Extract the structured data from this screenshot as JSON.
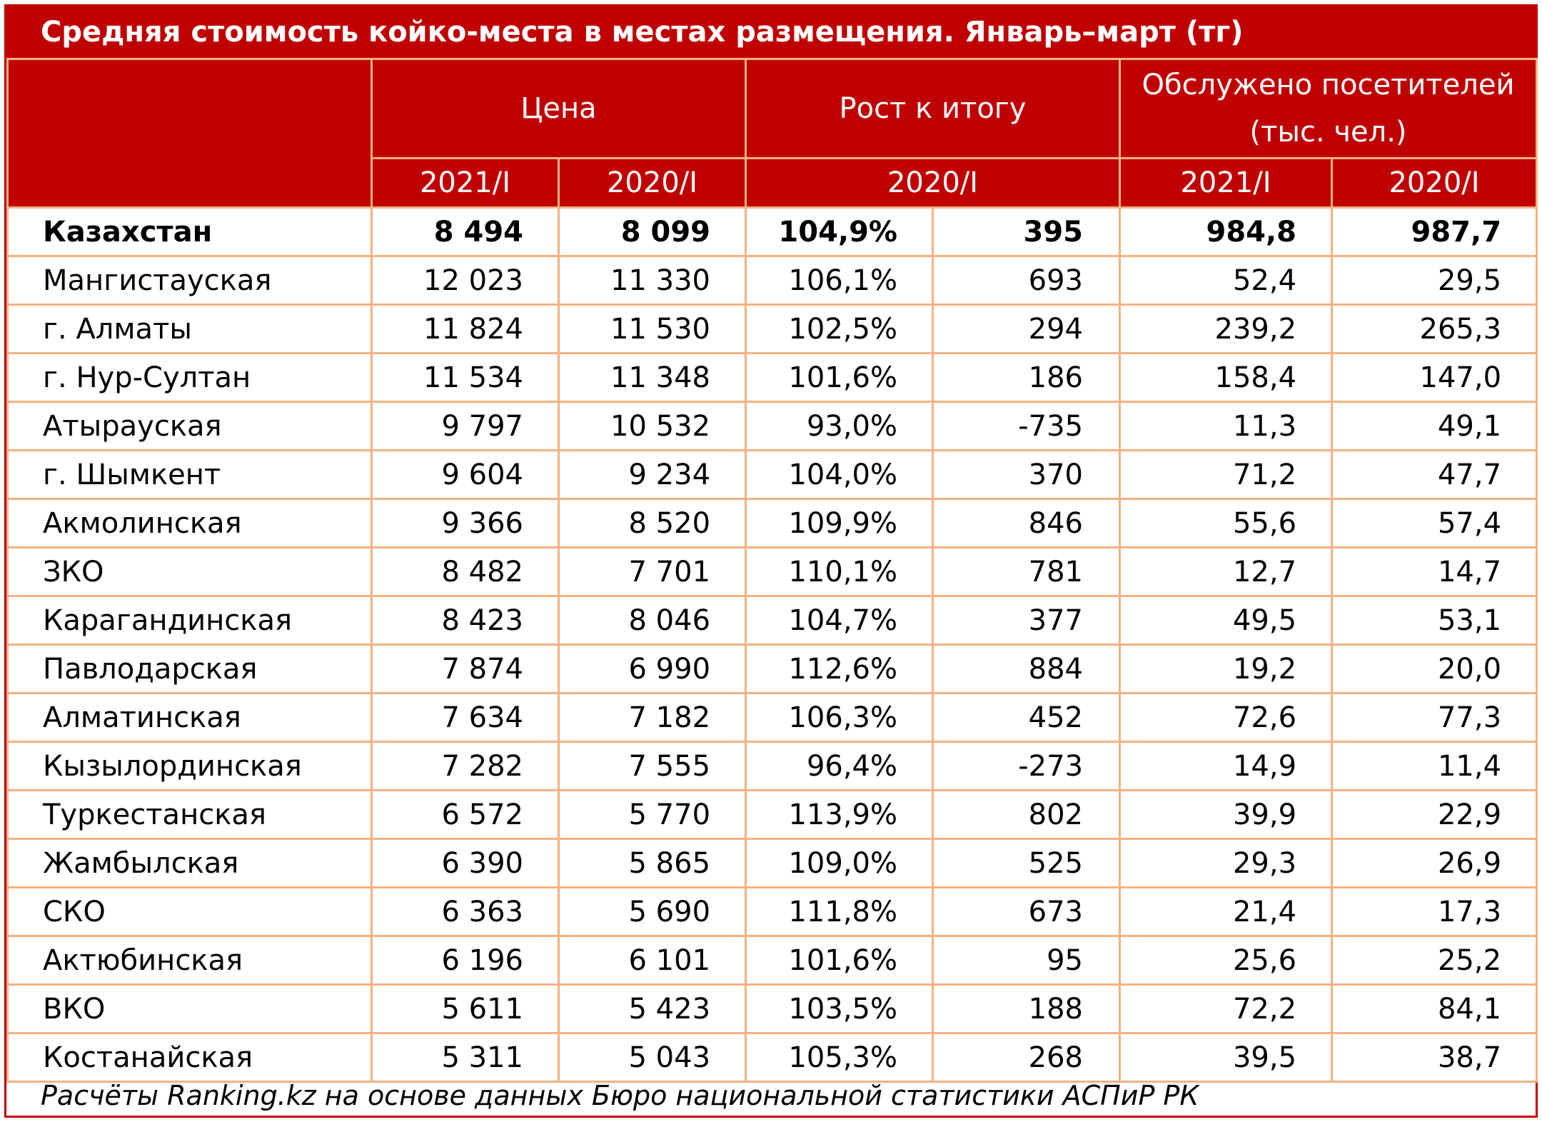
{
  "chart_data": {
    "type": "table",
    "title": "Средняя стоимость койко-места в местах размещения. Январь–март (тг)",
    "header_groups": {
      "price": "Цена",
      "growth": "Рост к итогу",
      "visitors_line1": "Обслужено посетителей",
      "visitors_line2": "(тыс. чел.)"
    },
    "subheaders": {
      "price_2021": "2021/I",
      "price_2020": "2020/I",
      "growth_2020": "2020/I",
      "visitors_2021": "2021/I",
      "visitors_2020": "2020/I"
    },
    "rows": [
      {
        "region": "Казахстан",
        "price_2021": "8 494",
        "price_2020": "8 099",
        "growth_pct": "104,9%",
        "growth_abs": "395",
        "visitors_2021": "984,8",
        "visitors_2020": "987,7"
      },
      {
        "region": "Мангистауская",
        "price_2021": "12 023",
        "price_2020": "11 330",
        "growth_pct": "106,1%",
        "growth_abs": "693",
        "visitors_2021": "52,4",
        "visitors_2020": "29,5"
      },
      {
        "region": "г. Алматы",
        "price_2021": "11 824",
        "price_2020": "11 530",
        "growth_pct": "102,5%",
        "growth_abs": "294",
        "visitors_2021": "239,2",
        "visitors_2020": "265,3"
      },
      {
        "region": "г. Нур-Султан",
        "price_2021": "11 534",
        "price_2020": "11 348",
        "growth_pct": "101,6%",
        "growth_abs": "186",
        "visitors_2021": "158,4",
        "visitors_2020": "147,0"
      },
      {
        "region": "Атырауская",
        "price_2021": "9 797",
        "price_2020": "10 532",
        "growth_pct": "93,0%",
        "growth_abs": "-735",
        "visitors_2021": "11,3",
        "visitors_2020": "49,1"
      },
      {
        "region": "г. Шымкент",
        "price_2021": "9 604",
        "price_2020": "9 234",
        "growth_pct": "104,0%",
        "growth_abs": "370",
        "visitors_2021": "71,2",
        "visitors_2020": "47,7"
      },
      {
        "region": "Акмолинская",
        "price_2021": "9 366",
        "price_2020": "8 520",
        "growth_pct": "109,9%",
        "growth_abs": "846",
        "visitors_2021": "55,6",
        "visitors_2020": "57,4"
      },
      {
        "region": "ЗКО",
        "price_2021": "8 482",
        "price_2020": "7 701",
        "growth_pct": "110,1%",
        "growth_abs": "781",
        "visitors_2021": "12,7",
        "visitors_2020": "14,7"
      },
      {
        "region": "Карагандинская",
        "price_2021": "8 423",
        "price_2020": "8 046",
        "growth_pct": "104,7%",
        "growth_abs": "377",
        "visitors_2021": "49,5",
        "visitors_2020": "53,1"
      },
      {
        "region": "Павлодарская",
        "price_2021": "7 874",
        "price_2020": "6 990",
        "growth_pct": "112,6%",
        "growth_abs": "884",
        "visitors_2021": "19,2",
        "visitors_2020": "20,0"
      },
      {
        "region": "Алматинская",
        "price_2021": "7 634",
        "price_2020": "7 182",
        "growth_pct": "106,3%",
        "growth_abs": "452",
        "visitors_2021": "72,6",
        "visitors_2020": "77,3"
      },
      {
        "region": "Кызылординская",
        "price_2021": "7 282",
        "price_2020": "7 555",
        "growth_pct": "96,4%",
        "growth_abs": "-273",
        "visitors_2021": "14,9",
        "visitors_2020": "11,4"
      },
      {
        "region": "Туркестанская",
        "price_2021": "6 572",
        "price_2020": "5 770",
        "growth_pct": "113,9%",
        "growth_abs": "802",
        "visitors_2021": "39,9",
        "visitors_2020": "22,9"
      },
      {
        "region": "Жамбылская",
        "price_2021": "6 390",
        "price_2020": "5 865",
        "growth_pct": "109,0%",
        "growth_abs": "525",
        "visitors_2021": "29,3",
        "visitors_2020": "26,9"
      },
      {
        "region": "СКО",
        "price_2021": "6 363",
        "price_2020": "5 690",
        "growth_pct": "111,8%",
        "growth_abs": "673",
        "visitors_2021": "21,4",
        "visitors_2020": "17,3"
      },
      {
        "region": "Актюбинская",
        "price_2021": "6 196",
        "price_2020": "6 101",
        "growth_pct": "101,6%",
        "growth_abs": "95",
        "visitors_2021": "25,6",
        "visitors_2020": "25,2"
      },
      {
        "region": "ВКО",
        "price_2021": "5 611",
        "price_2020": "5 423",
        "growth_pct": "103,5%",
        "growth_abs": "188",
        "visitors_2021": "72,2",
        "visitors_2020": "84,1"
      },
      {
        "region": "Костанайская",
        "price_2021": "5 311",
        "price_2020": "5 043",
        "growth_pct": "105,3%",
        "growth_abs": "268",
        "visitors_2021": "39,5",
        "visitors_2020": "38,7"
      }
    ],
    "source": "Расчёты Ranking.kz на основе данных Бюро национальной статистики АСПиР РК"
  },
  "colors": {
    "header_background": "#c00000",
    "header_text": "#ffffff",
    "grid_lines": "#f4b183",
    "body_text": "#000000"
  }
}
